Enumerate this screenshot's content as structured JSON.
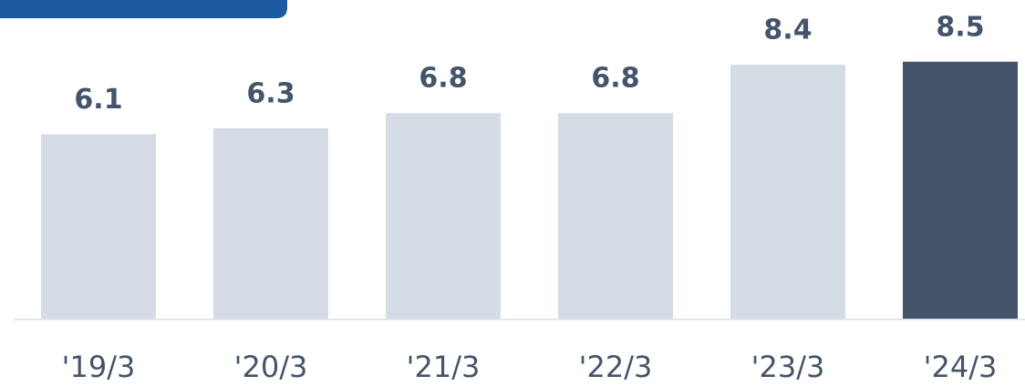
{
  "chart_data": {
    "type": "bar",
    "categories": [
      "'19/3",
      "'20/3",
      "'21/3",
      "'22/3",
      "'23/3",
      "'24/3"
    ],
    "values": [
      6.1,
      6.3,
      6.8,
      6.8,
      8.4,
      8.5
    ],
    "colors": [
      "#d5dce6",
      "#d5dce6",
      "#d5dce6",
      "#d5dce6",
      "#d5dce6",
      "#44546a"
    ],
    "ylim": [
      0,
      10
    ]
  }
}
